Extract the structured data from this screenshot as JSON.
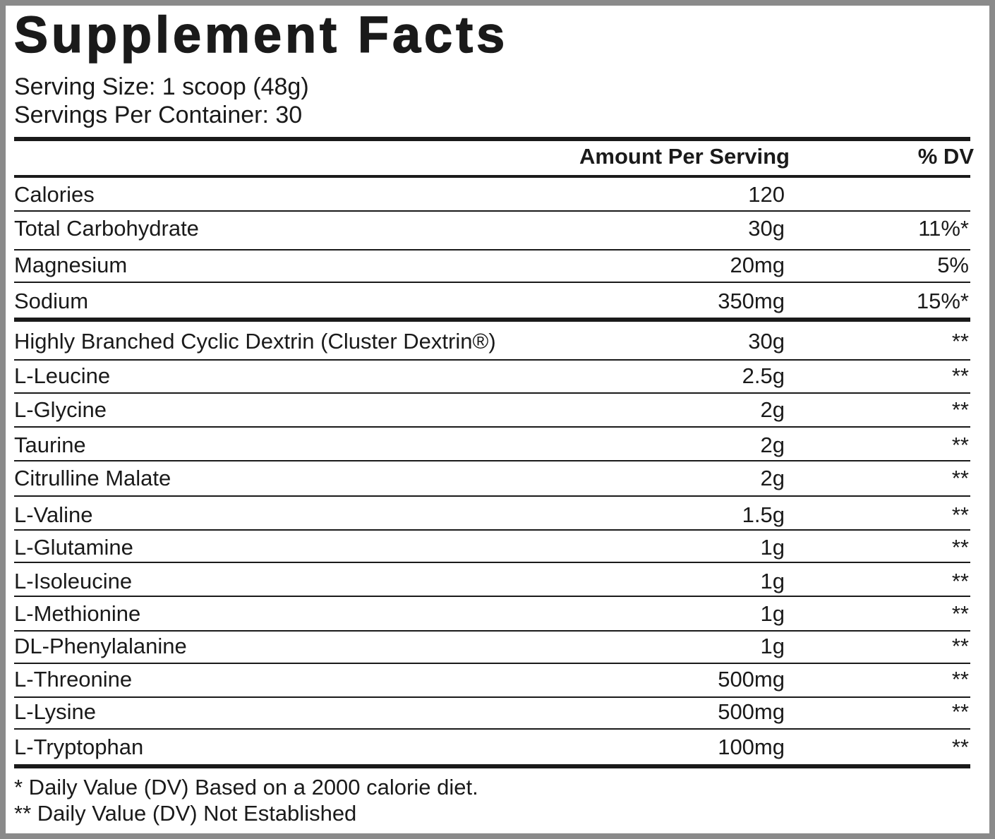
{
  "label": {
    "title": "Supplement Facts",
    "serving_size": "Serving Size: 1 scoop (48g)",
    "servings_per_container": "Servings Per Container: 30",
    "header_amount": "Amount Per Serving",
    "header_dv": "% DV"
  },
  "nutrients": [
    {
      "name": "Calories",
      "amount": "120",
      "dv": ""
    },
    {
      "name": "Total Carbohydrate",
      "amount": "30g",
      "dv": "11%*"
    },
    {
      "name": "Magnesium",
      "amount": "20mg",
      "dv": "5%"
    },
    {
      "name": "Sodium",
      "amount": "350mg",
      "dv": "15%*"
    }
  ],
  "ingredients": [
    {
      "name": "Highly Branched Cyclic Dextrin (Cluster Dextrin®)",
      "amount": "30g",
      "dv": "**"
    },
    {
      "name": "L-Leucine",
      "amount": "2.5g",
      "dv": "**"
    },
    {
      "name": "L-Glycine",
      "amount": "2g",
      "dv": "**"
    },
    {
      "name": "Taurine",
      "amount": "2g",
      "dv": "**"
    },
    {
      "name": "Citrulline Malate",
      "amount": "2g",
      "dv": "**"
    },
    {
      "name": "L-Valine",
      "amount": "1.5g",
      "dv": "**"
    },
    {
      "name": "L-Glutamine",
      "amount": "1g",
      "dv": "**"
    },
    {
      "name": "L-Isoleucine",
      "amount": "1g",
      "dv": "**"
    },
    {
      "name": "L-Methionine",
      "amount": "1g",
      "dv": "**"
    },
    {
      "name": "DL-Phenylalanine",
      "amount": "1g",
      "dv": "**"
    },
    {
      "name": "L-Threonine",
      "amount": "500mg",
      "dv": "**"
    },
    {
      "name": "L-Lysine",
      "amount": "500mg",
      "dv": "**"
    },
    {
      "name": "L-Tryptophan",
      "amount": "100mg",
      "dv": "**"
    }
  ],
  "footnotes": {
    "dv_based": "* Daily Value (DV) Based on a 2000 calorie diet.",
    "dv_not_established": "** Daily Value (DV) Not Established"
  }
}
